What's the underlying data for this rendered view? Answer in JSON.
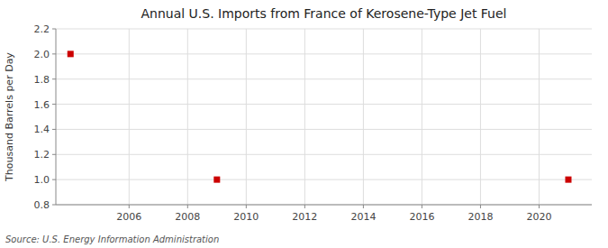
{
  "chart_data": {
    "type": "scatter",
    "title": "Annual U.S. Imports from France of Kerosene-Type Jet Fuel",
    "ylabel": "Thousand Barrels per Day",
    "annotations": [
      "Source: U.S. Energy Information Administration"
    ],
    "x": [
      2004,
      2009,
      2021
    ],
    "values": [
      2.0,
      1.0,
      1.0
    ],
    "color": "#cc0000",
    "marker": "square",
    "xlim": [
      2003.5,
      2021.8
    ],
    "ylim": [
      0.8,
      2.2
    ],
    "xticks": [
      2006,
      2008,
      2010,
      2012,
      2014,
      2016,
      2018,
      2020
    ],
    "yticks": [
      0.8,
      {
        "value": 1.0,
        "label": "1.0"
      },
      1.2,
      1.4,
      1.6,
      1.8,
      {
        "value": 2.0,
        "label": "2.0"
      },
      2.2
    ],
    "grid": true
  }
}
